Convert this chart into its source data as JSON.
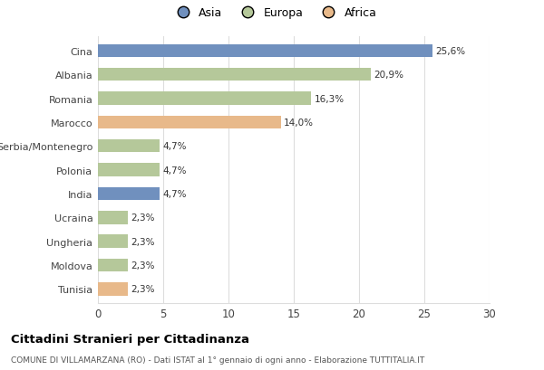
{
  "categories": [
    "Cina",
    "Albania",
    "Romania",
    "Marocco",
    "Serbia/Montenegro",
    "Polonia",
    "India",
    "Ucraina",
    "Ungheria",
    "Moldova",
    "Tunisia"
  ],
  "values": [
    25.6,
    20.9,
    16.3,
    14.0,
    4.7,
    4.7,
    4.7,
    2.3,
    2.3,
    2.3,
    2.3
  ],
  "labels": [
    "25,6%",
    "20,9%",
    "16,3%",
    "14,0%",
    "4,7%",
    "4,7%",
    "4,7%",
    "2,3%",
    "2,3%",
    "2,3%",
    "2,3%"
  ],
  "continents": [
    "Asia",
    "Europa",
    "Europa",
    "Africa",
    "Europa",
    "Europa",
    "Asia",
    "Europa",
    "Europa",
    "Europa",
    "Africa"
  ],
  "colors": {
    "Asia": "#7090be",
    "Europa": "#b5c89a",
    "Africa": "#e8b98a"
  },
  "legend_labels": [
    "Asia",
    "Europa",
    "Africa"
  ],
  "legend_colors": [
    "#7090be",
    "#b5c89a",
    "#e8b98a"
  ],
  "xlim": [
    0,
    30
  ],
  "xticks": [
    0,
    5,
    10,
    15,
    20,
    25,
    30
  ],
  "title": "Cittadini Stranieri per Cittadinanza",
  "subtitle": "COMUNE DI VILLAMARZANA (RO) - Dati ISTAT al 1° gennaio di ogni anno - Elaborazione TUTTITALIA.IT",
  "background_color": "#ffffff",
  "grid_color": "#dddddd",
  "bar_height": 0.55
}
